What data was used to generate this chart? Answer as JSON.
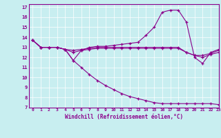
{
  "xlabel": "Windchill (Refroidissement éolien,°C)",
  "background_color": "#c8eef0",
  "line_color": "#8b008b",
  "xlim": [
    -0.5,
    23
  ],
  "ylim": [
    7,
    17.3
  ],
  "yticks": [
    7,
    8,
    9,
    10,
    11,
    12,
    13,
    14,
    15,
    16,
    17
  ],
  "xticks": [
    0,
    1,
    2,
    3,
    4,
    5,
    6,
    7,
    8,
    9,
    10,
    11,
    12,
    13,
    14,
    15,
    16,
    17,
    18,
    19,
    20,
    21,
    22,
    23
  ],
  "series": [
    [
      13.7,
      13.0,
      13.0,
      13.0,
      12.8,
      11.7,
      12.7,
      13.0,
      13.1,
      13.1,
      13.2,
      13.3,
      13.4,
      13.5,
      14.2,
      15.0,
      16.5,
      16.7,
      16.7,
      15.5,
      12.0,
      11.4,
      12.5,
      12.8
    ],
    [
      13.7,
      13.0,
      13.0,
      13.0,
      12.8,
      12.7,
      12.8,
      12.9,
      13.0,
      13.0,
      13.0,
      13.0,
      13.0,
      13.0,
      13.0,
      13.0,
      13.0,
      13.0,
      13.0,
      12.5,
      12.2,
      12.2,
      12.4,
      12.7
    ],
    [
      13.7,
      13.0,
      13.0,
      13.0,
      12.8,
      12.5,
      12.7,
      12.8,
      12.9,
      12.9,
      12.9,
      12.9,
      12.9,
      12.9,
      12.9,
      12.9,
      12.9,
      12.9,
      12.9,
      12.5,
      12.2,
      12.0,
      12.3,
      12.5
    ],
    [
      13.7,
      13.0,
      13.0,
      13.0,
      12.8,
      11.7,
      11.0,
      10.3,
      9.7,
      9.2,
      8.8,
      8.4,
      8.1,
      7.9,
      7.7,
      7.5,
      7.4,
      7.4,
      7.4,
      7.4,
      7.4,
      7.4,
      7.4,
      7.3
    ]
  ]
}
